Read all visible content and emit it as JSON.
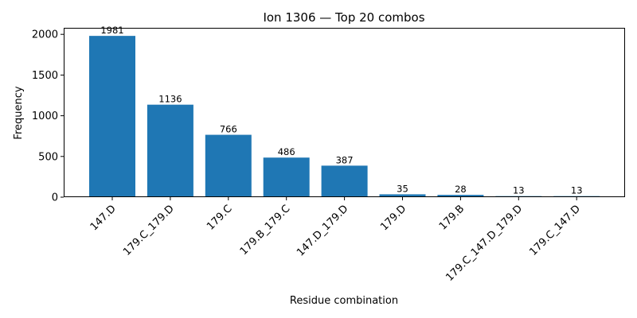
{
  "chart_data": {
    "type": "bar",
    "title": "Ion 1306 — Top 20 combos",
    "xlabel": "Residue combination",
    "ylabel": "Frequency",
    "categories": [
      "147.D",
      "179.C_179.D",
      "179.C",
      "179.B_179.C",
      "147.D_179.D",
      "179.D",
      "179.B",
      "179.C_147.D_179.D",
      "179.C_147.D"
    ],
    "values": [
      1981,
      1136,
      766,
      486,
      387,
      35,
      28,
      13,
      13
    ],
    "data_labels": [
      "1981",
      "1136",
      "766",
      "486",
      "387",
      "35",
      "28",
      "13",
      "13"
    ],
    "yticks": [
      0,
      500,
      1000,
      1500,
      2000
    ],
    "ytick_labels": [
      "0",
      "500",
      "1000",
      "1500",
      "2000"
    ],
    "ylim": [
      0,
      2080
    ],
    "grid": false,
    "bar_color": "#1f77b4"
  }
}
